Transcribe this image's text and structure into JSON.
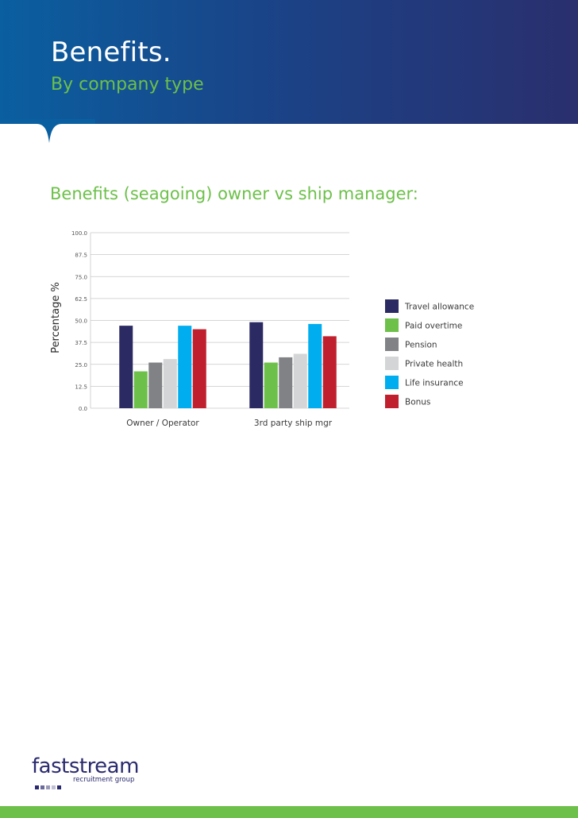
{
  "header": {
    "title": "Benefits.",
    "subtitle": "By company type"
  },
  "chart_data": {
    "type": "bar",
    "title": "Benefits (seagoing) owner vs ship manager:",
    "xlabel": "",
    "ylabel": "Percentage %",
    "ylim": [
      0,
      100
    ],
    "yticks": [
      "100.0",
      "87.5",
      "75.0",
      "62.5",
      "50.0",
      "37.5",
      "25.0",
      "12.5",
      "0.0"
    ],
    "categories": [
      "Owner / Operator",
      "3rd party ship mgr"
    ],
    "series": [
      {
        "name": "Travel allowance",
        "color": "#2b2a63",
        "values": [
          47,
          49
        ]
      },
      {
        "name": "Paid overtime",
        "color": "#6dc04a",
        "values": [
          21,
          26
        ]
      },
      {
        "name": "Pension",
        "color": "#808285",
        "values": [
          26,
          29
        ]
      },
      {
        "name": "Private health",
        "color": "#d4d5d6",
        "values": [
          28,
          31
        ]
      },
      {
        "name": "Life insurance",
        "color": "#00adef",
        "values": [
          47,
          48
        ]
      },
      {
        "name": "Bonus",
        "color": "#c0202e",
        "values": [
          45,
          41
        ]
      }
    ],
    "grid": true,
    "legend": "right"
  },
  "logo": {
    "name": "faststream",
    "tagline": "recruitment group",
    "dot_colors": [
      "#2a2a6e",
      "#6a6a9a",
      "#9a9ab8",
      "#c0c0d4",
      "#2a2a6e"
    ]
  },
  "colors": {
    "header_start": "#0a5fa0",
    "header_end": "#2a2f6e",
    "accent_green": "#6dc04a"
  }
}
